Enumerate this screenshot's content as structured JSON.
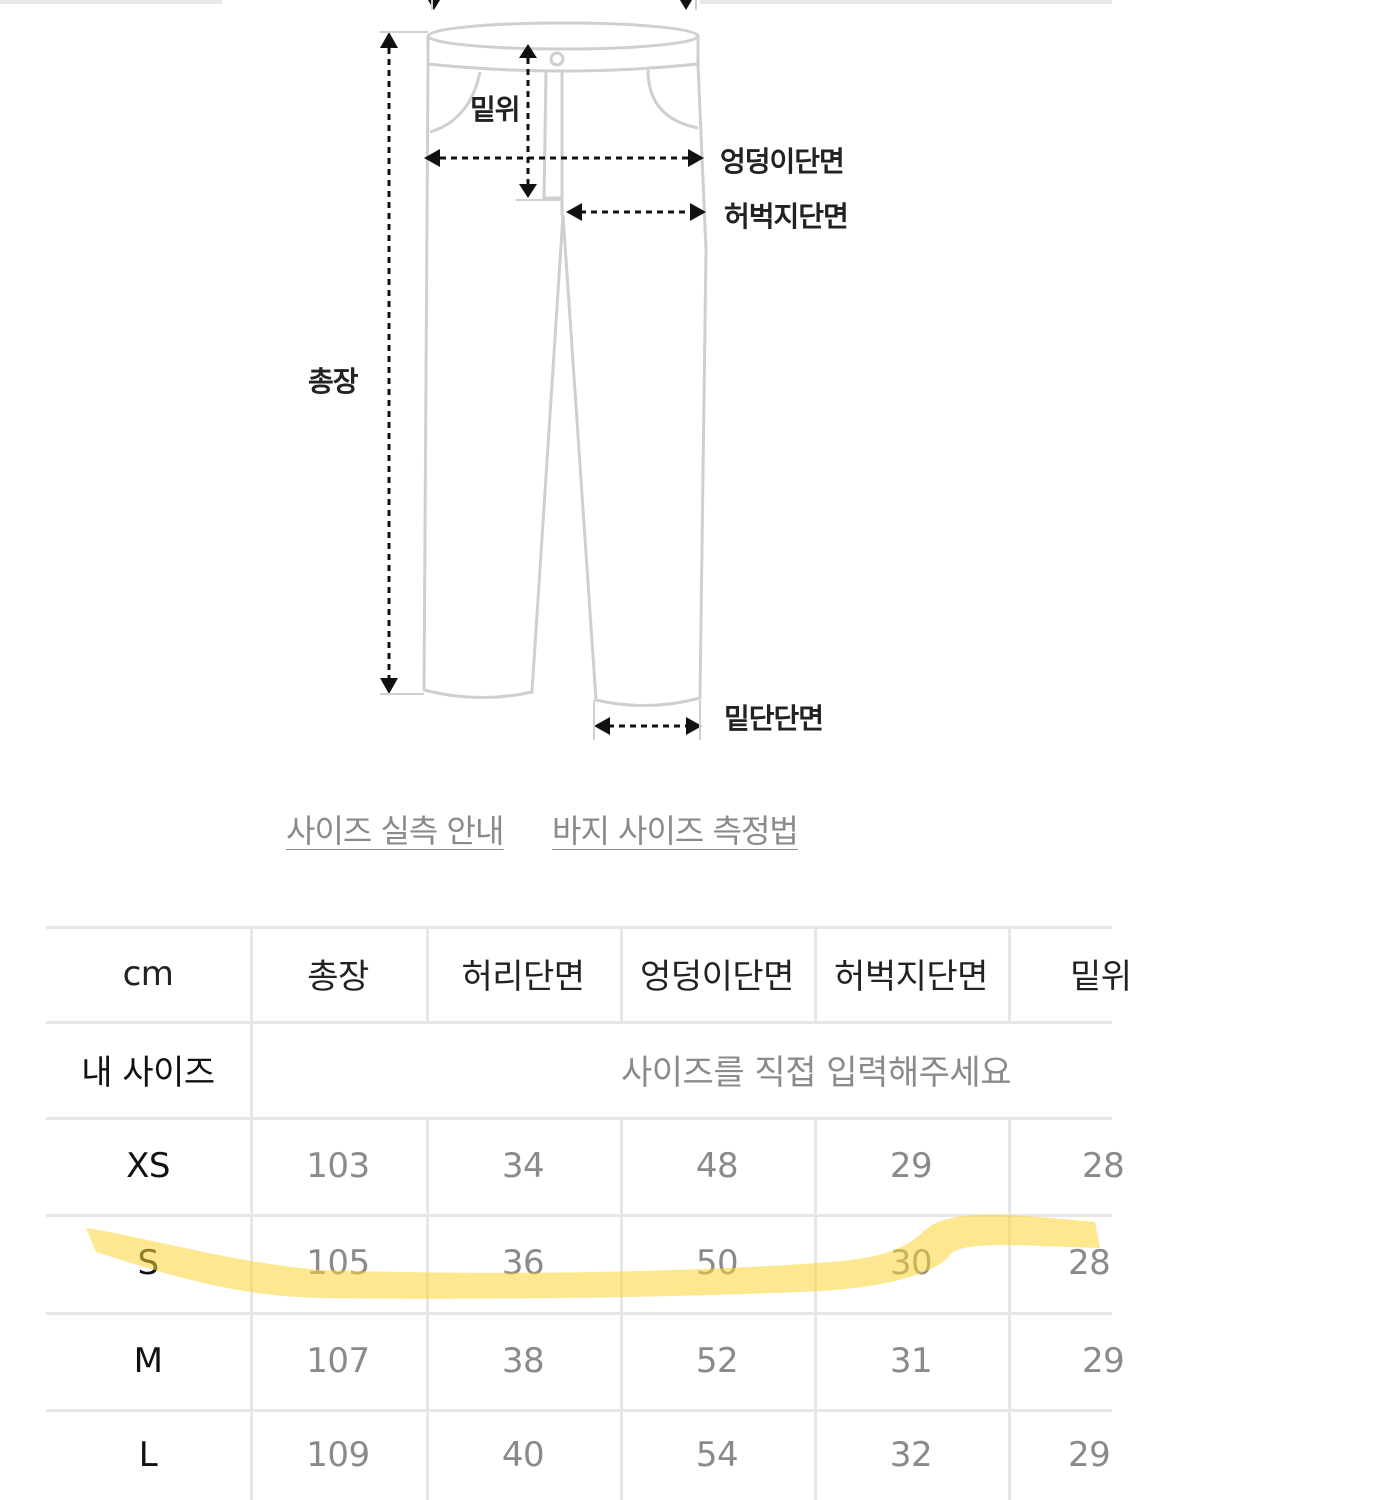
{
  "diagram": {
    "labels": {
      "rise": "밑위",
      "hip": "엉덩이단면",
      "thigh": "허벅지단면",
      "length": "총장",
      "hem": "밑단단면"
    }
  },
  "links": {
    "size_guide": "사이즈 실측 안내",
    "pants_measure": "바지 사이즈 측정법"
  },
  "table": {
    "unit_header": "cm",
    "headers": [
      "총장",
      "허리단면",
      "엉덩이단면",
      "허벅지단면",
      "밑위"
    ],
    "my_size_label": "내 사이즈",
    "my_size_placeholder": "사이즈를 직접 입력해주세요",
    "rows": [
      {
        "size": "XS",
        "values": [
          "103",
          "34",
          "48",
          "29",
          "28"
        ]
      },
      {
        "size": "S",
        "values": [
          "105",
          "36",
          "50",
          "30",
          "28"
        ]
      },
      {
        "size": "M",
        "values": [
          "107",
          "38",
          "52",
          "31",
          "29"
        ]
      },
      {
        "size": "L",
        "values": [
          "109",
          "40",
          "54",
          "32",
          "29"
        ]
      }
    ]
  },
  "colors": {
    "highlight": "#fcd635"
  }
}
